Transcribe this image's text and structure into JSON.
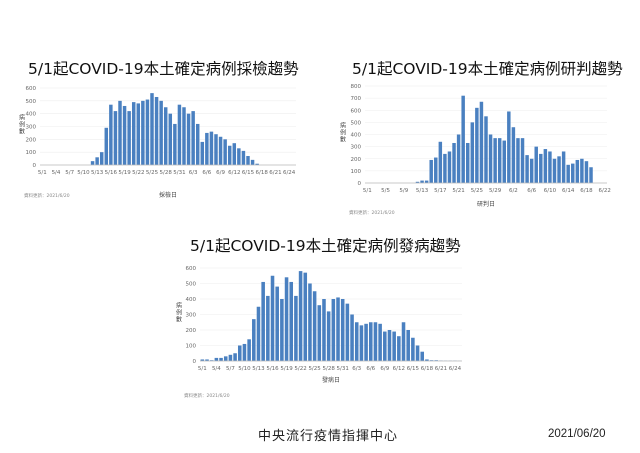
{
  "footer": {
    "organization": "中央流行疫情指揮中心",
    "date": "2021/06/20"
  },
  "colors": {
    "bar": "#4a80c0",
    "axis": "#bbbbbb",
    "grid": "#eeeeee",
    "text": "#666666"
  },
  "chart_data": [
    {
      "type": "bar",
      "title": "5/1起COVID-19本土確定病例採檢趨勢",
      "xlabel": "採檢日",
      "ylabel": "病例數",
      "source_note": "資料更新：2021/6/20",
      "ylim": [
        0,
        600
      ],
      "yticks": [
        0,
        100,
        200,
        300,
        400,
        500,
        600
      ],
      "categories": [
        "5/1",
        "5/2",
        "5/3",
        "5/4",
        "5/5",
        "5/6",
        "5/7",
        "5/8",
        "5/9",
        "5/10",
        "5/11",
        "5/12",
        "5/13",
        "5/14",
        "5/15",
        "5/16",
        "5/17",
        "5/18",
        "5/19",
        "5/20",
        "5/21",
        "5/22",
        "5/23",
        "5/24",
        "5/25",
        "5/26",
        "5/27",
        "5/28",
        "5/29",
        "5/30",
        "5/31",
        "6/1",
        "6/2",
        "6/3",
        "6/4",
        "6/5",
        "6/6",
        "6/7",
        "6/8",
        "6/9",
        "6/10",
        "6/11",
        "6/12",
        "6/13",
        "6/14",
        "6/15",
        "6/16",
        "6/17",
        "6/18",
        "6/19",
        "6/20",
        "6/21",
        "6/22",
        "6/23",
        "6/24",
        "6/25"
      ],
      "xtick_labels": [
        "5/1",
        "5/4",
        "5/7",
        "5/10",
        "5/13",
        "5/16",
        "5/19",
        "5/22",
        "5/25",
        "5/28",
        "5/31",
        "6/3",
        "6/6",
        "6/9",
        "6/12",
        "6/15",
        "6/18",
        "6/21",
        "6/24"
      ],
      "values": [
        0,
        0,
        0,
        0,
        0,
        0,
        0,
        0,
        0,
        0,
        0,
        30,
        60,
        100,
        290,
        470,
        420,
        500,
        460,
        420,
        490,
        480,
        500,
        510,
        560,
        530,
        500,
        450,
        400,
        320,
        470,
        450,
        400,
        420,
        320,
        180,
        250,
        260,
        240,
        220,
        200,
        150,
        170,
        130,
        110,
        70,
        40,
        10,
        0,
        0,
        0,
        0,
        0,
        0,
        0,
        0
      ]
    },
    {
      "type": "bar",
      "title": "5/1起COVID-19本土確定病例研判趨勢",
      "xlabel": "研判日",
      "ylabel": "病例數",
      "source_note": "資料更新：2021/6/20",
      "ylim": [
        0,
        800
      ],
      "yticks": [
        0,
        100,
        200,
        300,
        400,
        500,
        600,
        700,
        800
      ],
      "categories": [
        "5/1",
        "5/2",
        "5/3",
        "5/4",
        "5/5",
        "5/6",
        "5/7",
        "5/8",
        "5/9",
        "5/10",
        "5/11",
        "5/12",
        "5/13",
        "5/14",
        "5/15",
        "5/16",
        "5/17",
        "5/18",
        "5/19",
        "5/20",
        "5/21",
        "5/22",
        "5/23",
        "5/24",
        "5/25",
        "5/26",
        "5/27",
        "5/28",
        "5/29",
        "5/30",
        "5/31",
        "6/1",
        "6/2",
        "6/3",
        "6/4",
        "6/5",
        "6/6",
        "6/7",
        "6/8",
        "6/9",
        "6/10",
        "6/11",
        "6/12",
        "6/13",
        "6/14",
        "6/15",
        "6/16",
        "6/17",
        "6/18",
        "6/19",
        "6/20",
        "6/21",
        "6/22"
      ],
      "xtick_labels": [
        "5/1",
        "5/5",
        "5/9",
        "5/13",
        "5/17",
        "5/21",
        "5/25",
        "5/29",
        "6/2",
        "6/6",
        "6/10",
        "6/14",
        "6/18",
        "6/22"
      ],
      "values": [
        0,
        0,
        0,
        0,
        0,
        0,
        0,
        0,
        0,
        0,
        0,
        10,
        20,
        20,
        190,
        210,
        340,
        240,
        260,
        330,
        400,
        720,
        330,
        500,
        620,
        670,
        550,
        400,
        370,
        370,
        350,
        590,
        460,
        370,
        370,
        230,
        200,
        300,
        240,
        280,
        260,
        200,
        220,
        260,
        150,
        160,
        190,
        200,
        180,
        130,
        0,
        0,
        0
      ]
    },
    {
      "type": "bar",
      "title": "5/1起COVID-19本土確定病例發病趨勢",
      "xlabel": "發病日",
      "ylabel": "病例數",
      "source_note": "資料更新：2021/6/20",
      "ylim": [
        0,
        600
      ],
      "yticks": [
        0,
        100,
        200,
        300,
        400,
        500,
        600
      ],
      "categories": [
        "5/1",
        "5/2",
        "5/3",
        "5/4",
        "5/5",
        "5/6",
        "5/7",
        "5/8",
        "5/9",
        "5/10",
        "5/11",
        "5/12",
        "5/13",
        "5/14",
        "5/15",
        "5/16",
        "5/17",
        "5/18",
        "5/19",
        "5/20",
        "5/21",
        "5/22",
        "5/23",
        "5/24",
        "5/25",
        "5/26",
        "5/27",
        "5/28",
        "5/29",
        "5/30",
        "5/31",
        "6/1",
        "6/2",
        "6/3",
        "6/4",
        "6/5",
        "6/6",
        "6/7",
        "6/8",
        "6/9",
        "6/10",
        "6/11",
        "6/12",
        "6/13",
        "6/14",
        "6/15",
        "6/16",
        "6/17",
        "6/18",
        "6/19",
        "6/20",
        "6/21",
        "6/22",
        "6/23",
        "6/24",
        "6/25"
      ],
      "xtick_labels": [
        "5/1",
        "5/4",
        "5/7",
        "5/10",
        "5/13",
        "5/16",
        "5/19",
        "5/22",
        "5/25",
        "5/28",
        "5/31",
        "6/3",
        "6/6",
        "6/9",
        "6/12",
        "6/15",
        "6/18",
        "6/21",
        "6/24"
      ],
      "values": [
        10,
        10,
        5,
        20,
        20,
        30,
        40,
        50,
        100,
        110,
        140,
        270,
        350,
        510,
        420,
        550,
        480,
        400,
        540,
        510,
        420,
        580,
        570,
        500,
        450,
        360,
        400,
        320,
        400,
        410,
        400,
        370,
        300,
        250,
        230,
        240,
        250,
        250,
        240,
        190,
        200,
        190,
        160,
        250,
        200,
        150,
        100,
        60,
        10,
        5,
        5,
        3,
        2,
        2,
        2,
        1
      ]
    }
  ]
}
